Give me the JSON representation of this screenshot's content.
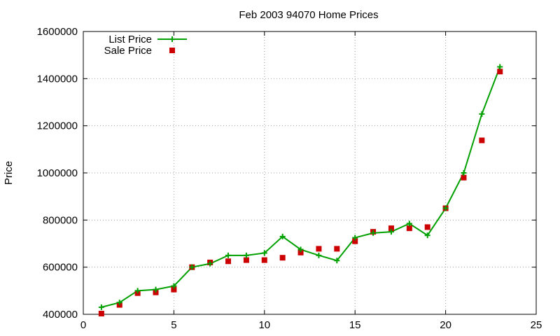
{
  "chart_data": {
    "type": "line",
    "title": "Feb 2003 94070 Home Prices",
    "xlabel": "",
    "ylabel": "Price",
    "xlim": [
      0,
      25
    ],
    "ylim": [
      400000,
      1600000
    ],
    "xticks": [
      "0",
      "5",
      "10",
      "15",
      "20",
      "25"
    ],
    "yticks": [
      "400000",
      "600000",
      "800000",
      "1000000",
      "1200000",
      "1400000",
      "1600000"
    ],
    "grid": true,
    "legend_position": "top-left",
    "colors": {
      "list": "#00a000",
      "sale": "#cc0000"
    },
    "series": [
      {
        "name": "List Price",
        "style": "line-with-plus-markers",
        "x": [
          1,
          2,
          3,
          4,
          5,
          6,
          7,
          8,
          9,
          10,
          11,
          12,
          13,
          14,
          15,
          16,
          17,
          18,
          19,
          20,
          21,
          22,
          23
        ],
        "values": [
          430000,
          450000,
          500000,
          505000,
          520000,
          600000,
          615000,
          650000,
          650000,
          660000,
          730000,
          675000,
          650000,
          628000,
          725000,
          745000,
          750000,
          785000,
          735000,
          850000,
          1000000,
          1250000,
          1450000
        ]
      },
      {
        "name": "Sale Price",
        "style": "square-markers",
        "x": [
          1,
          2,
          3,
          4,
          5,
          6,
          7,
          8,
          9,
          10,
          11,
          12,
          13,
          14,
          15,
          16,
          17,
          18,
          19,
          20,
          21,
          22,
          23
        ],
        "values": [
          403000,
          440000,
          490000,
          493000,
          505000,
          600000,
          620000,
          625000,
          630000,
          630000,
          640000,
          662000,
          678000,
          678000,
          710000,
          750000,
          765000,
          765000,
          770000,
          850000,
          980000,
          1138000,
          1430000
        ]
      }
    ]
  }
}
